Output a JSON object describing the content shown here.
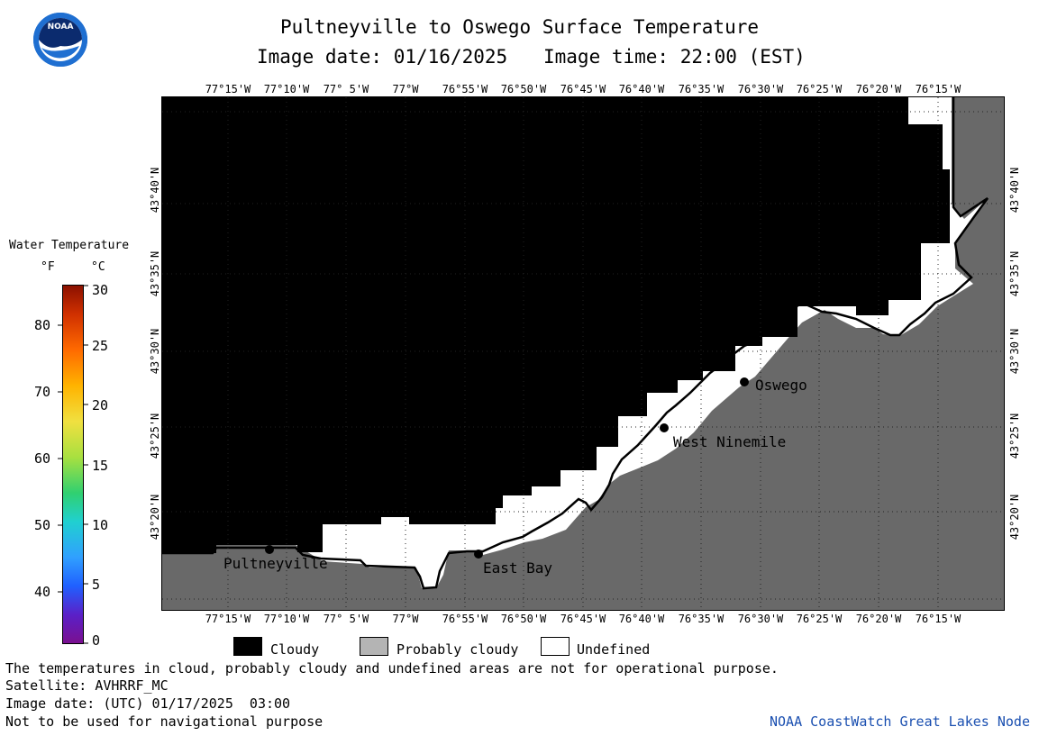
{
  "title": "Pultneyville to Oswego Surface Temperature",
  "subtitle_date": "Image date: 01/16/2025",
  "subtitle_time": "Image time: 22:00 (EST)",
  "logo_text": "NOAA",
  "longitude_labels": [
    "77°15'W",
    "77°10'W",
    "77° 5'W",
    "77°W",
    "76°55'W",
    "76°50'W",
    "76°45'W",
    "76°40'W",
    "76°35'W",
    "76°30'W",
    "76°25'W",
    "76°20'W",
    "76°15'W"
  ],
  "latitude_labels": [
    "43°40'N",
    "43°35'N",
    "43°30'N",
    "43°25'N",
    "43°20'N"
  ],
  "colorbar": {
    "title": "Water Temperature",
    "unit_f": "°F",
    "unit_c": "°C",
    "f_ticks": [
      "80",
      "70",
      "60",
      "50",
      "40"
    ],
    "c_ticks": [
      "30",
      "25",
      "20",
      "15",
      "10",
      "5",
      "0"
    ]
  },
  "places": [
    "Oswego",
    "West Ninemile",
    "East Bay",
    "Pultneyville"
  ],
  "legend": {
    "cloudy": "Cloudy",
    "probably_cloudy": "Probably cloudy",
    "undefined": "Undefined"
  },
  "notes": {
    "disclaimer": "The temperatures in cloud, probably cloudy and undefined areas are not for operational purpose.",
    "satellite": "Satellite: AVHRRF_MC",
    "utc_date": "Image date: (UTC) 01/17/2025  03:00",
    "nav": "Not to be used for navigational purpose",
    "credit": "NOAA CoastWatch Great Lakes Node"
  },
  "colors": {
    "cloudy": "#000000",
    "land": "#696969",
    "undefined": "#ffffff",
    "probably_cloudy": "#b4b4b4",
    "credit": "#1a4fb0"
  }
}
